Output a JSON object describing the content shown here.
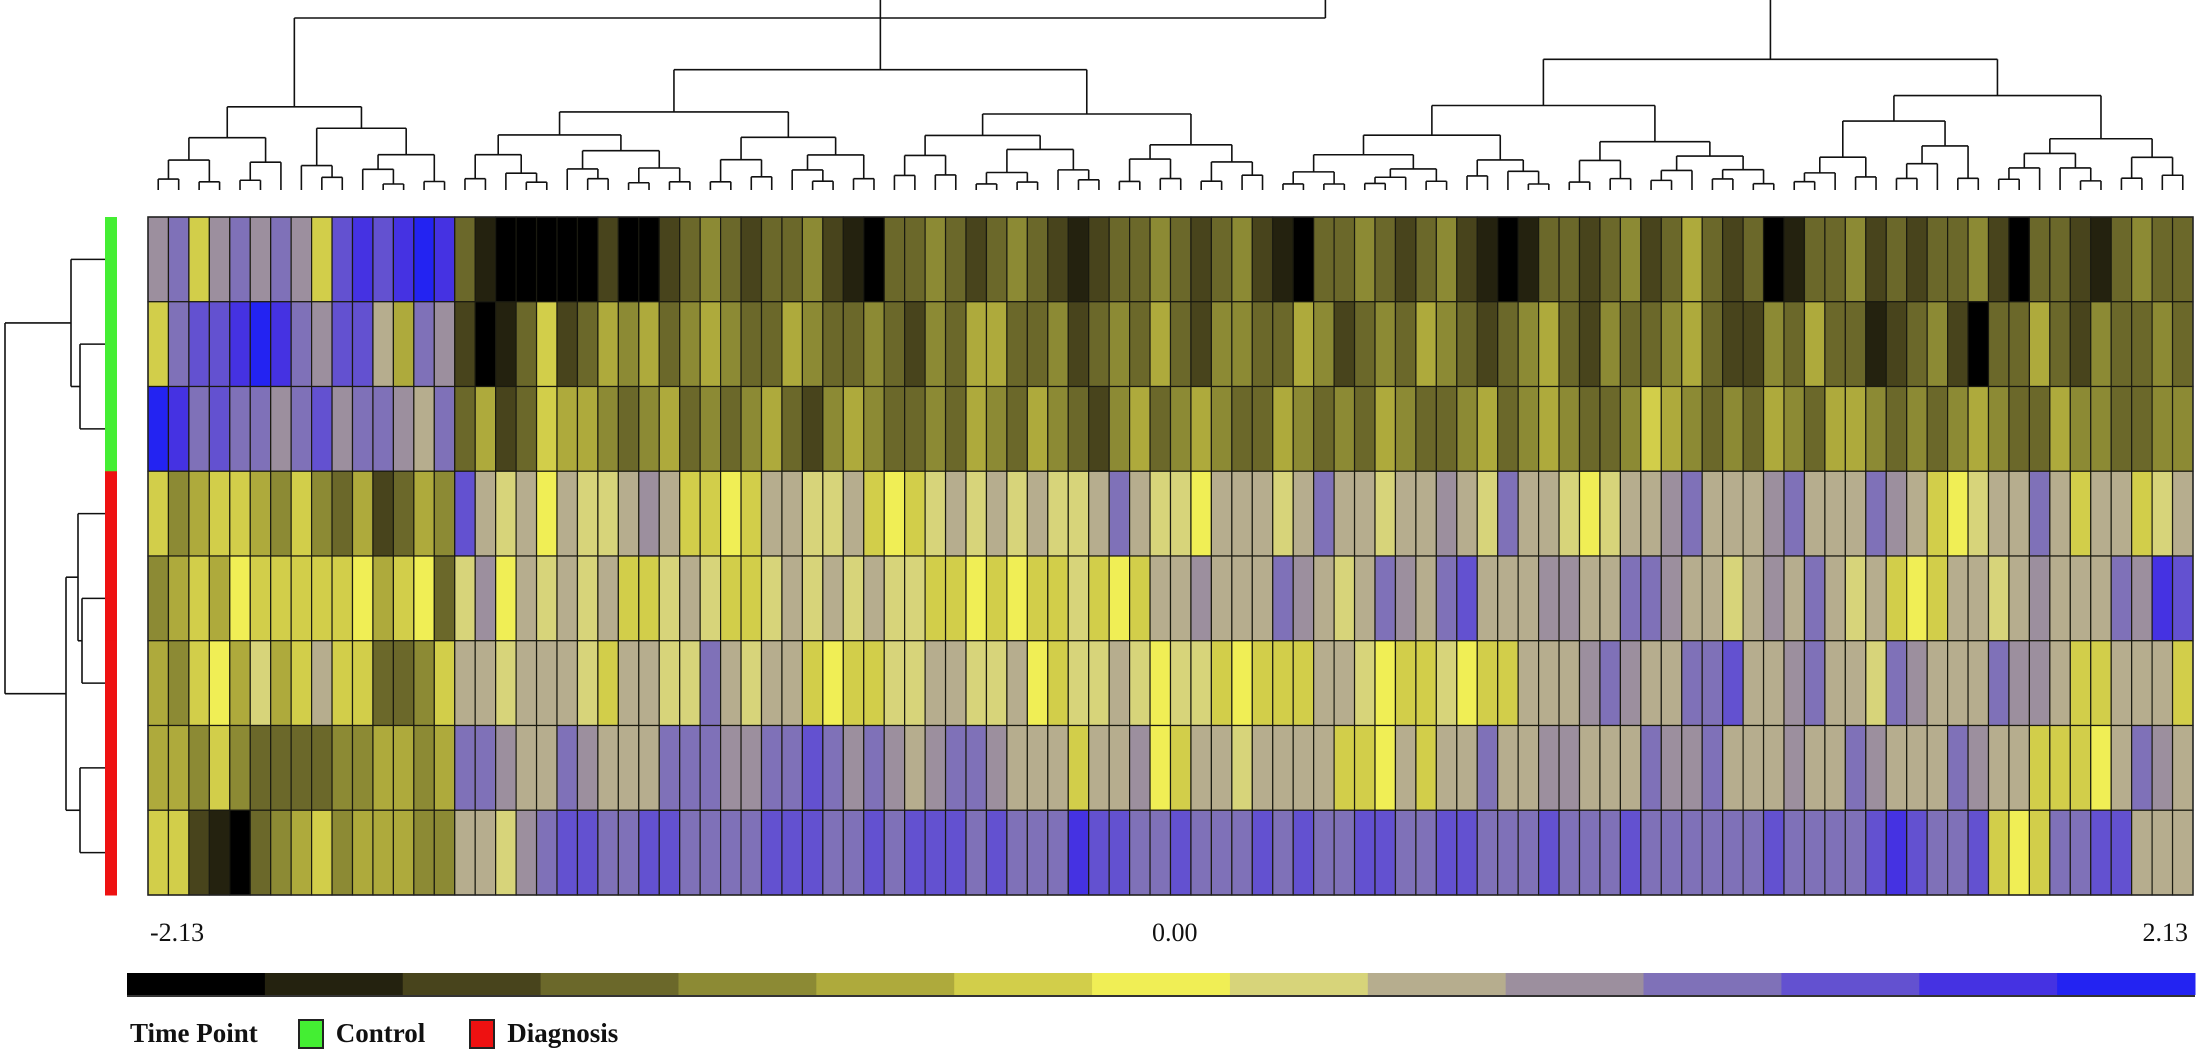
{
  "chart_data": {
    "type": "heatmap",
    "title": "",
    "color_scale": {
      "min": -2.13,
      "mid": 0.0,
      "max": 2.13,
      "tick_labels": [
        "-2.13",
        "0.00",
        "2.13"
      ],
      "colors": [
        "#000000",
        "#24220f",
        "#48441c",
        "#6b682a",
        "#8c8a34",
        "#aeaa3c",
        "#d2ce4a",
        "#f0ee55",
        "#d7d47a",
        "#b6ad8e",
        "#9c8f9e",
        "#7f71b8",
        "#6351d0",
        "#4532e2",
        "#2323f2"
      ]
    },
    "legend": {
      "title": "Time Point",
      "groups": [
        {
          "label": "Control",
          "color": "#44ee33"
        },
        {
          "label": "Diagnosis",
          "color": "#ee1111"
        }
      ]
    },
    "row_groups": [
      "Control",
      "Control",
      "Control",
      "Diagnosis",
      "Diagnosis",
      "Diagnosis",
      "Diagnosis",
      "Diagnosis"
    ],
    "rows": [
      [
        0.8,
        1.0,
        -0.4,
        0.9,
        1.0,
        0.8,
        1.1,
        0.9,
        -0.2,
        1.5,
        1.6,
        1.4,
        1.8,
        2.1,
        1.6,
        -1.2,
        -1.6,
        -2.1,
        -2.1,
        -1.9,
        -2.1,
        -2.0,
        -1.4,
        -2.1,
        -2.0,
        -1.3,
        -1.1,
        -0.9,
        -1.0,
        -1.3,
        -1.2,
        -1.0,
        -0.9,
        -1.4,
        -1.7,
        -1.9,
        -1.2,
        -1.0,
        -0.8,
        -1.1,
        -1.3,
        -1.0,
        -0.9,
        -1.2,
        -1.5,
        -1.8,
        -1.3,
        -1.0,
        -1.1,
        -0.8,
        -1.2,
        -1.4,
        -1.0,
        -0.9,
        -1.3,
        -1.6,
        -1.9,
        -1.2,
        -1.1,
        -0.8,
        -1.0,
        -1.3,
        -1.1,
        -0.9,
        -1.5,
        -1.8,
        -2.0,
        -1.7,
        -1.2,
        -1.0,
        -1.4,
        -1.1,
        -0.9,
        -1.3,
        -1.0,
        -0.7,
        -1.2,
        -1.5,
        -1.1,
        -1.9,
        -1.6,
        -1.2,
        -1.0,
        -0.8,
        -1.3,
        -1.1,
        -1.4,
        -1.2,
        -1.0,
        -0.9,
        -1.5,
        -2.1,
        -1.1,
        -1.0,
        -1.3,
        -1.8,
        -1.1,
        -0.9,
        -1.0,
        -1.2
      ],
      [
        -0.4,
        1.2,
        1.4,
        1.3,
        1.6,
        2.0,
        1.7,
        1.2,
        0.9,
        1.3,
        1.4,
        0.7,
        -0.5,
        1.0,
        0.9,
        -1.4,
        -1.9,
        -1.7,
        -1.0,
        -0.4,
        -1.3,
        -1.0,
        -0.6,
        -0.8,
        -0.7,
        -1.0,
        -0.9,
        -0.6,
        -0.8,
        -1.1,
        -1.0,
        -0.7,
        -0.9,
        -1.2,
        -1.0,
        -0.8,
        -1.1,
        -1.3,
        -0.9,
        -1.0,
        -0.7,
        -0.6,
        -1.2,
        -1.0,
        -0.9,
        -1.4,
        -1.1,
        -0.8,
        -1.0,
        -0.7,
        -1.2,
        -1.5,
        -0.9,
        -0.8,
        -1.1,
        -1.0,
        -0.6,
        -0.9,
        -1.3,
        -1.0,
        -0.8,
        -1.1,
        -0.7,
        -0.9,
        -1.2,
        -1.4,
        -1.0,
        -0.8,
        -0.6,
        -1.1,
        -1.3,
        -0.9,
        -1.0,
        -1.2,
        -0.8,
        -0.7,
        -1.0,
        -1.5,
        -1.3,
        -0.9,
        -1.1,
        -0.6,
        -1.0,
        -1.2,
        -1.8,
        -1.4,
        -1.0,
        -0.8,
        -1.5,
        -1.9,
        -1.2,
        -1.0,
        -0.7,
        -1.1,
        -1.3,
        -0.9,
        -1.0,
        -1.2,
        -0.8,
        -1.0
      ],
      [
        2.0,
        1.8,
        1.2,
        1.3,
        1.0,
        1.2,
        0.9,
        1.1,
        1.3,
        0.8,
        1.1,
        1.2,
        0.9,
        0.6,
        1.0,
        -1.2,
        -0.6,
        -1.5,
        -1.0,
        -0.4,
        -0.7,
        -0.5,
        -0.9,
        -1.1,
        -0.8,
        -0.6,
        -1.0,
        -0.9,
        -1.2,
        -0.8,
        -0.7,
        -1.0,
        -1.3,
        -0.9,
        -0.6,
        -0.8,
        -1.1,
        -1.0,
        -0.9,
        -1.2,
        -0.7,
        -0.8,
        -1.0,
        -0.6,
        -0.9,
        -1.1,
        -1.3,
        -0.8,
        -0.7,
        -1.0,
        -0.9,
        -0.5,
        -0.8,
        -1.2,
        -1.0,
        -0.7,
        -0.9,
        -1.1,
        -0.8,
        -1.0,
        -0.6,
        -0.9,
        -1.2,
        -1.0,
        -0.8,
        -0.7,
        -1.1,
        -0.9,
        -0.6,
        -0.8,
        -1.0,
        -1.2,
        -0.9,
        -0.4,
        -0.7,
        -0.9,
        -1.0,
        -0.8,
        -1.1,
        -0.6,
        -0.9,
        -1.0,
        -0.7,
        -0.5,
        -0.8,
        -1.0,
        -0.9,
        -1.2,
        -0.8,
        -0.6,
        -0.9,
        -1.1,
        -1.0,
        -0.7,
        -0.8,
        -0.9,
        -1.0,
        -1.2,
        -0.8,
        -0.9
      ],
      [
        -0.2,
        -0.9,
        -0.7,
        -0.4,
        -0.2,
        -0.6,
        -0.8,
        -0.3,
        -0.9,
        -1.0,
        -0.7,
        -1.3,
        -1.2,
        -0.6,
        -0.8,
        1.5,
        0.5,
        0.3,
        0.7,
        -0.1,
        0.6,
        0.4,
        0.3,
        0.6,
        0.8,
        0.5,
        -0.3,
        -0.2,
        -0.1,
        -0.2,
        0.5,
        0.6,
        0.4,
        0.3,
        0.7,
        -0.2,
        -0.1,
        -0.2,
        0.4,
        0.5,
        0.3,
        0.6,
        0.4,
        0.5,
        0.3,
        0.4,
        0.6,
        1.0,
        0.5,
        0.3,
        0.4,
        -0.1,
        0.5,
        0.7,
        0.6,
        0.4,
        0.5,
        1.0,
        0.6,
        0.7,
        0.4,
        0.5,
        0.6,
        0.8,
        0.5,
        0.4,
        1.1,
        0.6,
        0.5,
        0.4,
        -0.1,
        0.3,
        0.6,
        0.7,
        0.8,
        1.0,
        0.6,
        0.5,
        0.7,
        0.9,
        1.0,
        0.7,
        0.6,
        0.5,
        1.1,
        0.8,
        0.6,
        -0.2,
        -0.1,
        0.4,
        0.5,
        0.6,
        1.0,
        0.7,
        -0.2,
        0.5,
        0.6,
        -0.2,
        0.4,
        0.5
      ],
      [
        -0.8,
        -0.7,
        -0.4,
        -0.6,
        -0.1,
        -0.2,
        -0.3,
        -0.2,
        -0.4,
        -0.2,
        -0.1,
        -0.5,
        -0.3,
        -0.1,
        -1.0,
        0.4,
        0.9,
        -0.1,
        0.5,
        0.3,
        0.6,
        0.4,
        0.5,
        -0.2,
        -0.3,
        0.4,
        0.5,
        0.3,
        -0.2,
        -0.3,
        0.4,
        0.5,
        0.3,
        0.6,
        0.4,
        0.5,
        0.3,
        0.4,
        -0.2,
        -0.3,
        -0.1,
        -0.2,
        -0.1,
        -0.2,
        -0.3,
        0.4,
        -0.2,
        -0.1,
        -0.2,
        0.5,
        0.6,
        0.9,
        0.7,
        0.5,
        0.6,
        1.0,
        0.8,
        0.7,
        0.4,
        0.5,
        1.2,
        0.9,
        0.6,
        1.0,
        1.3,
        0.7,
        0.5,
        0.6,
        0.9,
        0.8,
        0.7,
        0.5,
        1.0,
        1.1,
        0.8,
        0.6,
        0.5,
        0.4,
        0.6,
        0.8,
        0.7,
        1.0,
        0.5,
        0.4,
        0.6,
        -0.2,
        -0.1,
        -0.2,
        0.5,
        0.6,
        0.4,
        0.5,
        0.8,
        0.6,
        0.7,
        0.5,
        1.2,
        0.9,
        1.6,
        1.4
      ],
      [
        -0.6,
        -0.8,
        -0.3,
        -0.1,
        -0.5,
        0.4,
        -0.6,
        -0.2,
        0.5,
        -0.4,
        -0.3,
        -1.0,
        -1.2,
        -0.8,
        -0.4,
        0.6,
        0.5,
        0.4,
        0.6,
        0.5,
        0.7,
        0.4,
        -0.2,
        0.5,
        0.6,
        0.4,
        0.3,
        1.0,
        0.5,
        0.4,
        0.6,
        0.5,
        -0.2,
        -0.1,
        -0.2,
        -0.3,
        0.4,
        0.3,
        0.5,
        0.6,
        0.4,
        0.3,
        0.5,
        -0.1,
        -0.2,
        0.3,
        0.4,
        0.5,
        0.4,
        -0.1,
        0.3,
        0.2,
        -0.2,
        -0.1,
        -0.2,
        -0.3,
        -0.2,
        0.5,
        0.6,
        0.4,
        -0.1,
        -0.2,
        -0.3,
        0.4,
        -0.1,
        -0.2,
        -0.3,
        0.5,
        0.6,
        0.7,
        0.8,
        1.0,
        0.9,
        0.6,
        0.5,
        1.2,
        1.0,
        1.3,
        0.7,
        0.6,
        0.8,
        1.0,
        0.5,
        0.6,
        0.4,
        1.0,
        0.9,
        0.6,
        0.7,
        0.5,
        1.0,
        0.8,
        0.9,
        0.6,
        -0.3,
        -0.2,
        0.5,
        0.6,
        0.7,
        -0.2
      ],
      [
        -0.7,
        -0.5,
        -0.9,
        -0.3,
        -0.8,
        -1.0,
        -1.1,
        -1.0,
        -1.2,
        -0.9,
        -0.8,
        -0.7,
        -0.6,
        -0.8,
        -0.6,
        1.2,
        1.1,
        0.8,
        0.6,
        0.5,
        1.0,
        0.9,
        0.6,
        0.7,
        0.5,
        1.1,
        1.2,
        1.0,
        0.8,
        0.9,
        1.1,
        1.2,
        1.3,
        1.0,
        0.9,
        1.1,
        0.8,
        0.6,
        0.9,
        1.0,
        1.1,
        0.8,
        0.7,
        0.6,
        0.5,
        -0.2,
        0.6,
        0.5,
        0.8,
        -0.1,
        -0.2,
        0.5,
        0.6,
        0.4,
        0.5,
        0.7,
        0.5,
        0.6,
        -0.3,
        -0.2,
        -0.1,
        0.5,
        -0.2,
        0.6,
        0.7,
        1.0,
        0.6,
        0.5,
        0.8,
        0.9,
        0.7,
        0.6,
        0.5,
        1.0,
        0.9,
        0.8,
        1.1,
        0.7,
        0.6,
        0.5,
        0.8,
        0.6,
        0.7,
        1.0,
        0.9,
        0.6,
        0.5,
        0.7,
        1.0,
        0.8,
        0.6,
        0.5,
        -0.2,
        -0.3,
        -0.2,
        -0.1,
        0.6,
        1.0,
        0.8,
        0.7
      ],
      [
        -0.3,
        -0.2,
        -1.3,
        -1.8,
        -2.0,
        -1.2,
        -0.9,
        -0.6,
        -0.4,
        -0.8,
        -0.6,
        -0.7,
        -0.5,
        -0.9,
        -0.8,
        0.5,
        0.6,
        0.4,
        0.9,
        1.2,
        1.4,
        1.3,
        1.2,
        1.1,
        1.3,
        1.4,
        1.2,
        1.1,
        1.0,
        1.2,
        1.3,
        1.5,
        1.4,
        1.2,
        1.1,
        1.3,
        1.2,
        1.4,
        1.5,
        1.3,
        1.2,
        1.4,
        1.1,
        1.0,
        1.2,
        1.6,
        1.4,
        1.3,
        1.2,
        1.1,
        1.3,
        1.2,
        1.0,
        1.1,
        1.3,
        1.2,
        1.4,
        1.1,
        1.0,
        1.3,
        1.5,
        1.2,
        1.1,
        1.3,
        1.4,
        1.1,
        1.0,
        1.2,
        1.3,
        1.1,
        1.0,
        1.2,
        1.4,
        1.1,
        1.0,
        1.2,
        1.1,
        1.0,
        1.1,
        1.3,
        1.2,
        1.1,
        1.0,
        1.2,
        1.3,
        1.6,
        1.4,
        1.1,
        1.2,
        1.3,
        -0.2,
        -0.1,
        -0.3,
        1.1,
        1.2,
        1.3,
        1.5,
        0.5,
        0.6,
        0.5
      ]
    ]
  }
}
